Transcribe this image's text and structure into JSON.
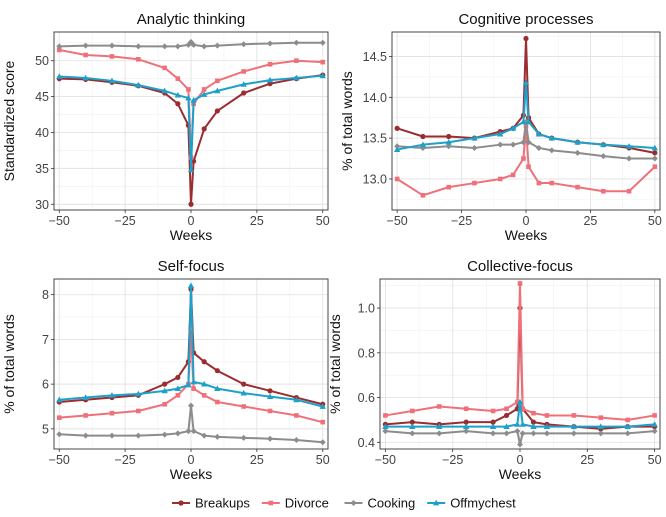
{
  "legend": {
    "position": "bottom",
    "entries": [
      {
        "name": "Breakups",
        "color": "#9b2d30",
        "marker": "circle"
      },
      {
        "name": "Divorce",
        "color": "#f0707a",
        "marker": "square"
      },
      {
        "name": "Cooking",
        "color": "#8c8c8c",
        "marker": "diamond"
      },
      {
        "name": "Offmychest",
        "color": "#1fa0c8",
        "marker": "triangle"
      }
    ]
  },
  "chart_data": [
    {
      "type": "line",
      "title": "Analytic thinking",
      "xlabel": "Weeks",
      "ylabel": "Standardized score",
      "xlim": [
        -52,
        52
      ],
      "ylim": [
        29.2,
        54
      ],
      "xticks": [
        -50,
        -25,
        0,
        25,
        50
      ],
      "yticks": [
        30,
        35,
        40,
        45,
        50
      ],
      "grid": true,
      "x": [
        -50,
        -40,
        -30,
        -20,
        -10,
        -5,
        -1,
        0,
        1,
        5,
        10,
        20,
        30,
        40,
        50
      ],
      "series": [
        {
          "name": "Breakups",
          "values": [
            47.5,
            47.4,
            47.0,
            46.5,
            45.5,
            44.0,
            41.0,
            30.0,
            36.0,
            40.5,
            43.0,
            45.5,
            46.8,
            47.5,
            48.0
          ]
        },
        {
          "name": "Divorce",
          "values": [
            51.5,
            50.8,
            50.6,
            50.2,
            49.0,
            47.5,
            46.0,
            36.5,
            44.0,
            46.0,
            47.2,
            48.5,
            49.5,
            50.0,
            49.8
          ]
        },
        {
          "name": "Cooking",
          "values": [
            52.0,
            52.1,
            52.1,
            52.0,
            52.0,
            52.0,
            52.2,
            52.6,
            52.2,
            52.0,
            52.1,
            52.3,
            52.4,
            52.5,
            52.5
          ]
        },
        {
          "name": "Offmychest",
          "values": [
            47.8,
            47.6,
            47.2,
            46.6,
            45.8,
            45.2,
            44.8,
            34.8,
            44.5,
            45.3,
            45.8,
            46.7,
            47.3,
            47.6,
            47.9
          ]
        }
      ]
    },
    {
      "type": "line",
      "title": "Cognitive processes",
      "xlabel": "Weeks",
      "ylabel": "% of total words",
      "xlim": [
        -52,
        52
      ],
      "ylim": [
        12.62,
        14.8
      ],
      "xticks": [
        -50,
        -25,
        0,
        25,
        50
      ],
      "yticks": [
        13.0,
        13.5,
        14.0,
        14.5
      ],
      "grid": true,
      "x": [
        -50,
        -40,
        -30,
        -20,
        -10,
        -5,
        -1,
        0,
        1,
        5,
        10,
        20,
        30,
        40,
        50
      ],
      "series": [
        {
          "name": "Breakups",
          "values": [
            13.62,
            13.52,
            13.52,
            13.5,
            13.58,
            13.62,
            13.78,
            14.72,
            13.75,
            13.55,
            13.5,
            13.45,
            13.42,
            13.38,
            13.32
          ]
        },
        {
          "name": "Divorce",
          "values": [
            13.0,
            12.8,
            12.9,
            12.95,
            13.0,
            13.05,
            13.25,
            13.65,
            13.15,
            12.95,
            12.95,
            12.9,
            12.85,
            12.85,
            13.15
          ]
        },
        {
          "name": "Cooking",
          "values": [
            13.4,
            13.38,
            13.4,
            13.38,
            13.42,
            13.42,
            13.45,
            13.7,
            13.45,
            13.38,
            13.35,
            13.32,
            13.28,
            13.25,
            13.25
          ]
        },
        {
          "name": "Offmychest",
          "values": [
            13.36,
            13.42,
            13.45,
            13.5,
            13.55,
            13.62,
            13.7,
            14.18,
            13.7,
            13.55,
            13.5,
            13.45,
            13.42,
            13.4,
            13.38
          ]
        }
      ]
    },
    {
      "type": "line",
      "title": "Self-focus",
      "xlabel": "Weeks",
      "ylabel": "% of total words",
      "xlim": [
        -52,
        52
      ],
      "ylim": [
        4.55,
        8.35
      ],
      "xticks": [
        -50,
        -25,
        0,
        25,
        50
      ],
      "yticks": [
        5,
        6,
        7,
        8
      ],
      "grid": true,
      "x": [
        -50,
        -40,
        -30,
        -20,
        -10,
        -5,
        -1,
        0,
        1,
        5,
        10,
        20,
        30,
        40,
        50
      ],
      "series": [
        {
          "name": "Breakups",
          "values": [
            5.6,
            5.65,
            5.7,
            5.75,
            6.0,
            6.15,
            6.5,
            8.12,
            6.7,
            6.5,
            6.3,
            6.0,
            5.85,
            5.7,
            5.55
          ]
        },
        {
          "name": "Divorce",
          "values": [
            5.25,
            5.3,
            5.35,
            5.4,
            5.55,
            5.75,
            6.0,
            7.15,
            5.9,
            5.75,
            5.6,
            5.5,
            5.4,
            5.3,
            5.15
          ]
        },
        {
          "name": "Cooking",
          "values": [
            4.88,
            4.85,
            4.85,
            4.85,
            4.87,
            4.9,
            4.95,
            5.52,
            4.95,
            4.85,
            4.82,
            4.8,
            4.78,
            4.75,
            4.7
          ]
        },
        {
          "name": "Offmychest",
          "values": [
            5.65,
            5.7,
            5.75,
            5.78,
            5.85,
            5.9,
            5.98,
            8.2,
            6.05,
            6.0,
            5.9,
            5.8,
            5.72,
            5.65,
            5.5
          ]
        }
      ]
    },
    {
      "type": "line",
      "title": "Collective-focus",
      "xlabel": "Weeks",
      "ylabel": "% of total words",
      "xlim": [
        -52,
        52
      ],
      "ylim": [
        0.37,
        1.13
      ],
      "xticks": [
        -50,
        -25,
        0,
        25,
        50
      ],
      "yticks": [
        0.4,
        0.6,
        0.8,
        1.0
      ],
      "grid": true,
      "x": [
        -50,
        -40,
        -30,
        -20,
        -10,
        -5,
        -1,
        0,
        1,
        5,
        10,
        20,
        30,
        40,
        50
      ],
      "series": [
        {
          "name": "Breakups",
          "values": [
            0.48,
            0.49,
            0.48,
            0.49,
            0.49,
            0.52,
            0.55,
            1.0,
            0.55,
            0.49,
            0.48,
            0.47,
            0.46,
            0.47,
            0.47
          ]
        },
        {
          "name": "Divorce",
          "values": [
            0.52,
            0.54,
            0.56,
            0.55,
            0.54,
            0.55,
            0.58,
            1.11,
            0.55,
            0.53,
            0.52,
            0.52,
            0.51,
            0.5,
            0.52
          ]
        },
        {
          "name": "Cooking",
          "values": [
            0.45,
            0.44,
            0.44,
            0.45,
            0.44,
            0.44,
            0.45,
            0.39,
            0.44,
            0.44,
            0.44,
            0.44,
            0.44,
            0.44,
            0.45
          ]
        },
        {
          "name": "Offmychest",
          "values": [
            0.47,
            0.47,
            0.47,
            0.47,
            0.47,
            0.47,
            0.48,
            0.58,
            0.48,
            0.47,
            0.47,
            0.47,
            0.47,
            0.47,
            0.48
          ]
        }
      ]
    }
  ]
}
